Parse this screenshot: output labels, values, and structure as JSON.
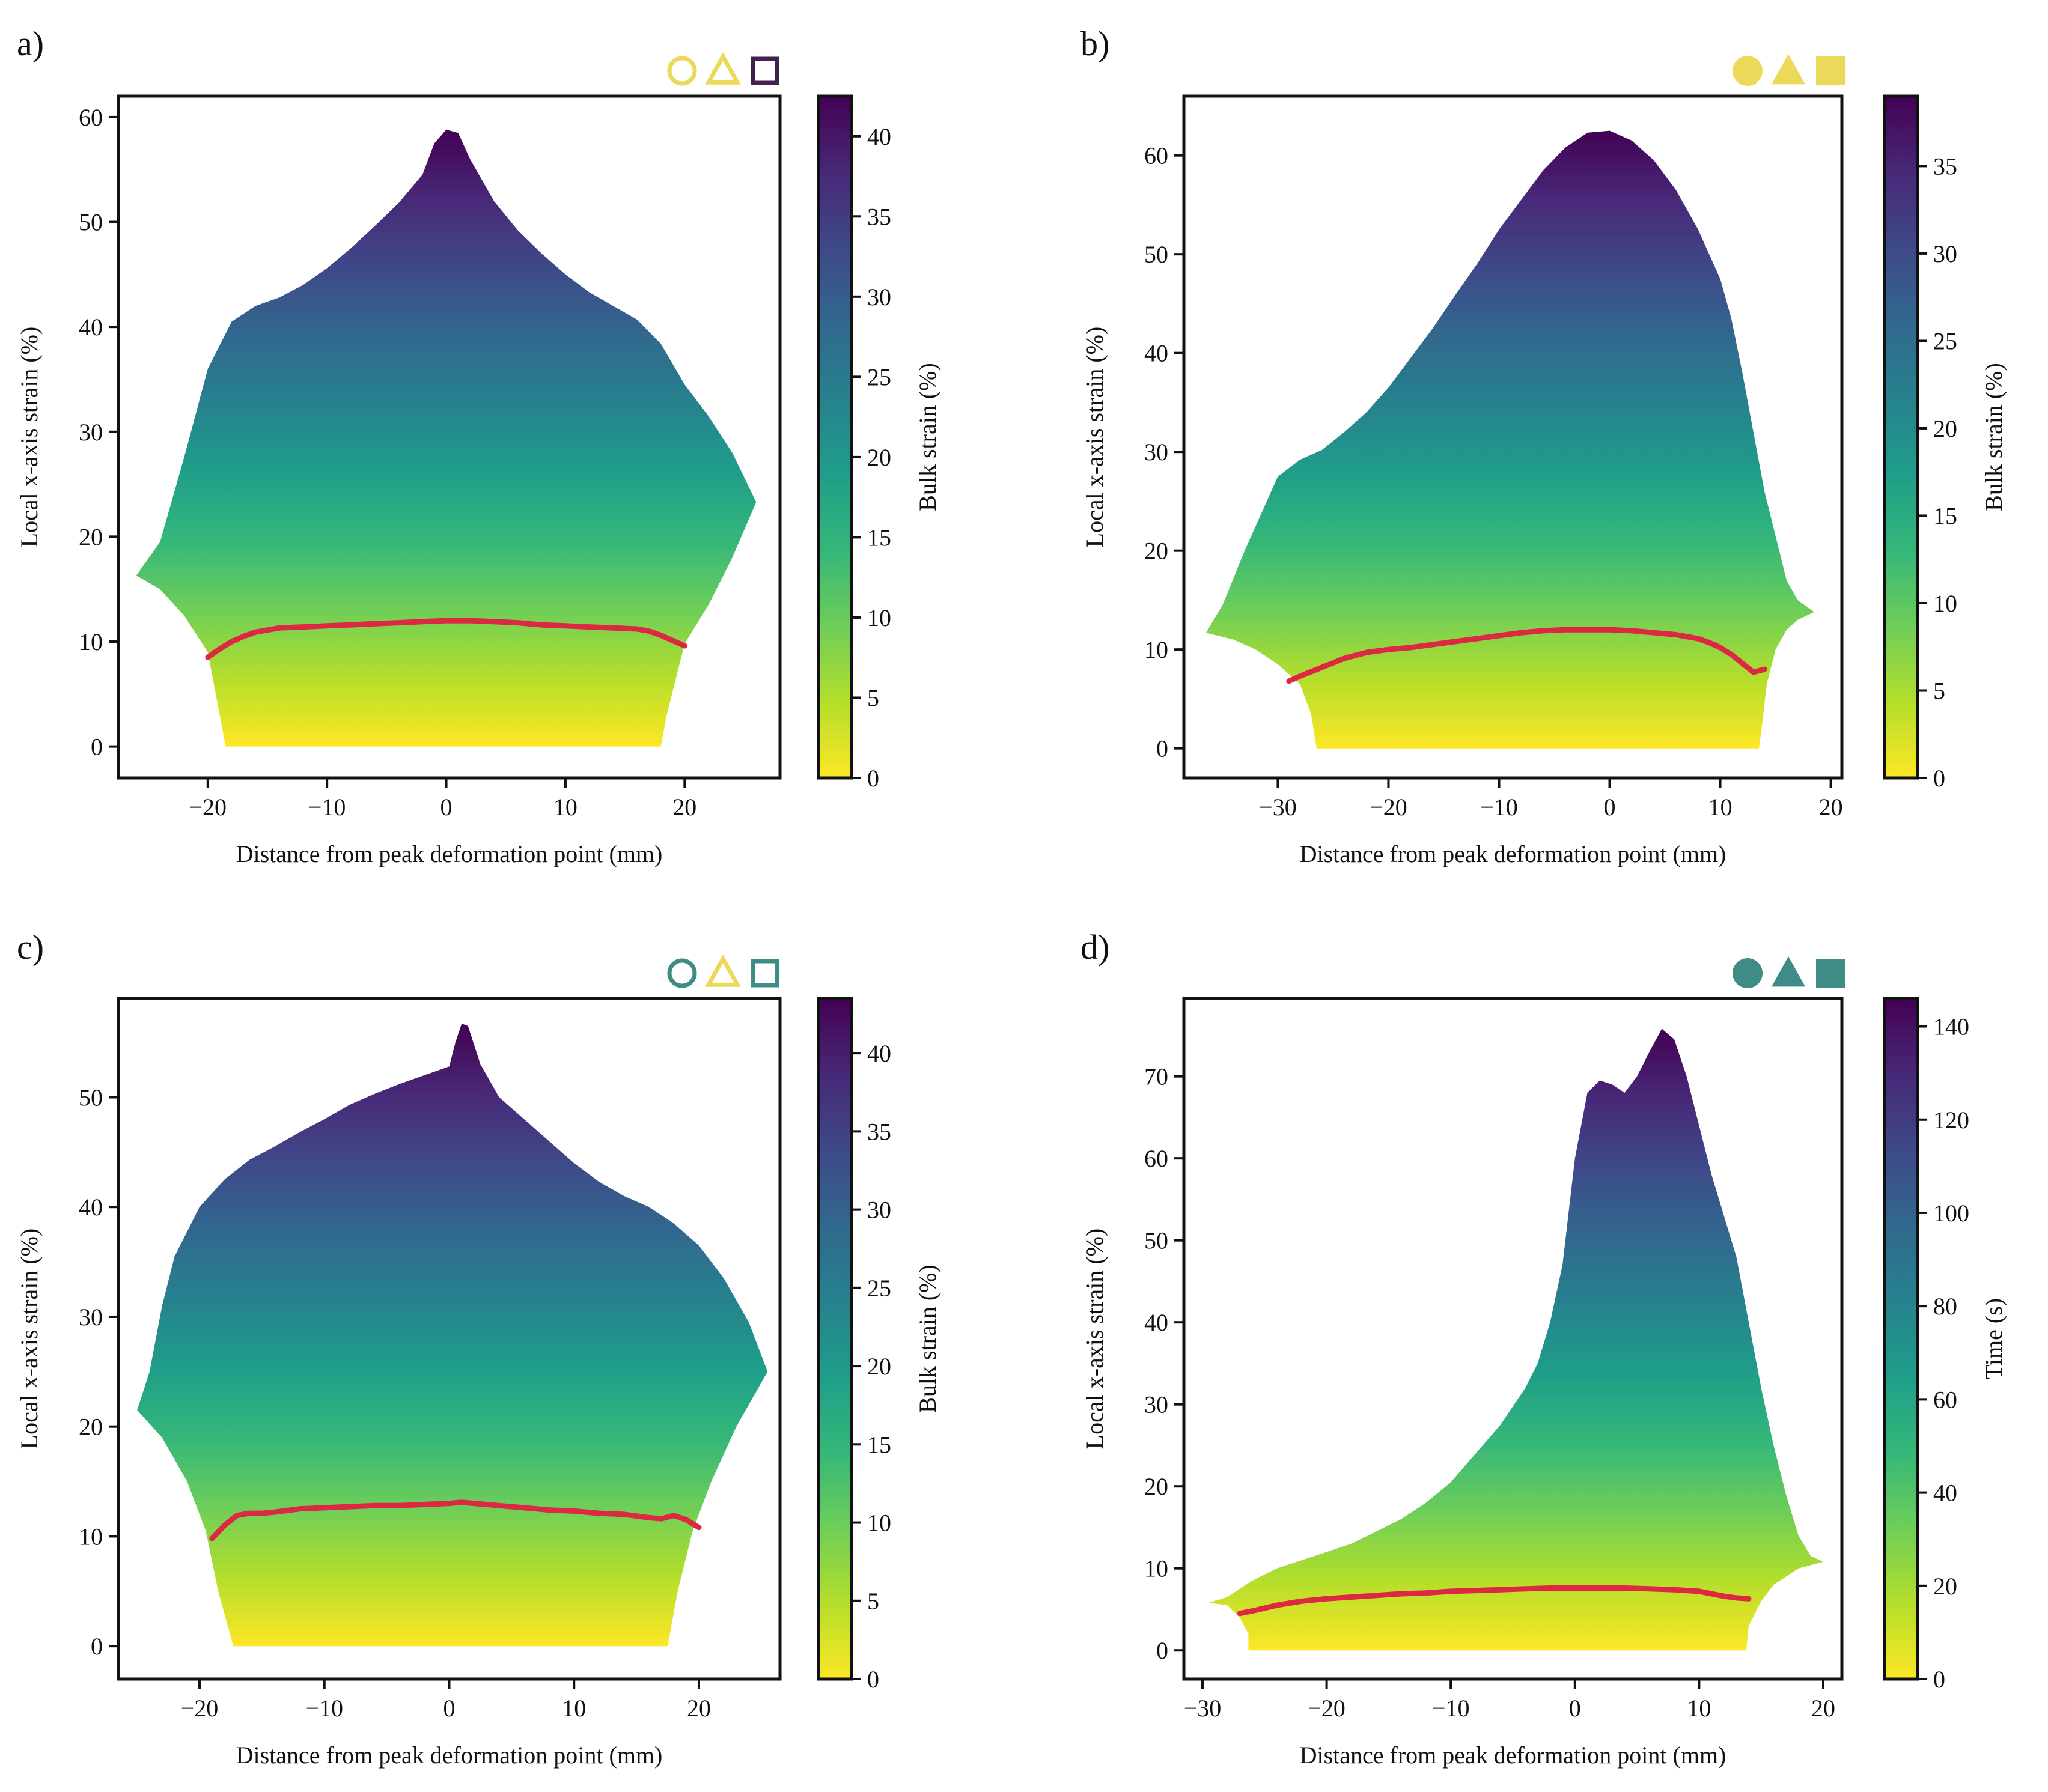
{
  "colors": {
    "viridis": [
      "#fde725",
      "#b5de2b",
      "#6ece58",
      "#35b779",
      "#1f9e89",
      "#26828e",
      "#31688e",
      "#3e4989",
      "#482878",
      "#440154"
    ],
    "peak_line": "#dc2843",
    "axes": "#111111"
  },
  "chart_data": [
    {
      "type": "area",
      "panel": "a)",
      "xlabel": "Distance from peak deformation point (mm)",
      "ylabel": "Local x-axis strain (%)",
      "xlim": [
        -27.5,
        28
      ],
      "ylim": [
        -3,
        62
      ],
      "xticks": [
        -20,
        -10,
        0,
        10,
        20
      ],
      "yticks": [
        0,
        10,
        20,
        30,
        40,
        50,
        60
      ],
      "colorbar": {
        "label": "Bulk strain (%)",
        "range": [
          0,
          42.5
        ],
        "ticks": [
          0,
          5,
          10,
          15,
          20,
          25,
          30,
          35,
          40
        ]
      },
      "markers": [
        {
          "shape": "circle",
          "filled": false,
          "color": "#ecd95a"
        },
        {
          "shape": "triangle",
          "filled": false,
          "color": "#ecd95a"
        },
        {
          "shape": "square",
          "filled": false,
          "color": "#44204f"
        }
      ],
      "envelope_top": {
        "x": [
          -26,
          -24,
          -22,
          -20,
          -18,
          -16,
          -14,
          -12,
          -10,
          -8,
          -6,
          -4,
          -2,
          -1,
          0,
          1,
          2,
          4,
          6,
          8,
          10,
          12,
          14,
          16,
          18,
          20,
          22,
          24,
          26
        ],
        "y": [
          16.3,
          19.5,
          27.5,
          36,
          40.5,
          42,
          42.8,
          44,
          45.6,
          47.5,
          49.6,
          51.8,
          54.5,
          57.5,
          58.8,
          58.5,
          56,
          52,
          49.2,
          47,
          45,
          43.3,
          42,
          40.7,
          38.4,
          34.5,
          31.5,
          28,
          23.3
        ]
      },
      "envelope_bottom": {
        "x": [
          -26,
          -24,
          -22,
          -20,
          -19,
          -18.5,
          18,
          18.5,
          20,
          22,
          24,
          26
        ],
        "y": [
          16.3,
          15,
          12.5,
          9,
          3,
          0,
          0,
          3,
          9.8,
          13.5,
          18,
          23.3
        ]
      },
      "red_line": {
        "x": [
          -20,
          -19,
          -18,
          -17,
          -16,
          -14,
          -12,
          -10,
          -8,
          -6,
          -4,
          -2,
          0,
          2,
          4,
          6,
          8,
          10,
          12,
          14,
          16,
          17,
          18,
          19,
          20
        ],
        "y": [
          8.5,
          9.3,
          10,
          10.5,
          10.9,
          11.3,
          11.4,
          11.5,
          11.6,
          11.7,
          11.8,
          11.9,
          12.0,
          12.0,
          11.9,
          11.8,
          11.6,
          11.5,
          11.4,
          11.3,
          11.2,
          11.0,
          10.6,
          10.1,
          9.6
        ]
      }
    },
    {
      "type": "area",
      "panel": "b)",
      "xlabel": "Distance from peak deformation point (mm)",
      "ylabel": "Local x-axis strain (%)",
      "xlim": [
        -38.5,
        21
      ],
      "ylim": [
        -3,
        66
      ],
      "xticks": [
        -30,
        -20,
        -10,
        0,
        10,
        20
      ],
      "yticks": [
        0,
        10,
        20,
        30,
        40,
        50,
        60
      ],
      "colorbar": {
        "label": "Bulk strain (%)",
        "range": [
          0,
          39
        ],
        "ticks": [
          0,
          5,
          10,
          15,
          20,
          25,
          30,
          35
        ]
      },
      "markers": [
        {
          "shape": "circle",
          "filled": true,
          "color": "#ecd95a"
        },
        {
          "shape": "triangle",
          "filled": true,
          "color": "#ecd95a"
        },
        {
          "shape": "square",
          "filled": true,
          "color": "#ecd95a"
        }
      ],
      "envelope_top": {
        "x": [
          -36.5,
          -35,
          -33,
          -31,
          -30,
          -28,
          -26,
          -24,
          -22,
          -20,
          -18,
          -16,
          -14,
          -12,
          -10,
          -8,
          -6,
          -4,
          -2,
          0,
          2,
          4,
          6,
          8,
          10,
          11,
          12,
          14,
          16,
          17,
          18.5
        ],
        "y": [
          11.7,
          14.5,
          20,
          25,
          27.5,
          29.2,
          30.2,
          32,
          34,
          36.5,
          39.5,
          42.5,
          45.8,
          49,
          52.5,
          55.5,
          58.5,
          60.8,
          62.3,
          62.5,
          61.5,
          59.5,
          56.5,
          52.5,
          47.5,
          43.5,
          38,
          26,
          17,
          15,
          13.8
        ]
      },
      "envelope_bottom": {
        "x": [
          -36.5,
          -34,
          -32,
          -30,
          -28,
          -27,
          -26.5,
          13.5,
          13.8,
          14.2,
          15,
          16,
          17,
          18.5
        ],
        "y": [
          11.7,
          11,
          10,
          8.5,
          6.5,
          3.5,
          0,
          0,
          2.5,
          6.5,
          10,
          12,
          13,
          13.8
        ]
      },
      "red_line": {
        "x": [
          -29,
          -28,
          -26,
          -24,
          -22,
          -20,
          -18,
          -16,
          -14,
          -12,
          -10,
          -8,
          -6,
          -4,
          -2,
          0,
          2,
          4,
          6,
          8,
          9,
          10,
          11,
          12,
          13,
          14
        ],
        "y": [
          6.8,
          7.3,
          8.2,
          9.1,
          9.7,
          10.0,
          10.2,
          10.5,
          10.8,
          11.1,
          11.4,
          11.7,
          11.9,
          12.0,
          12.0,
          12.0,
          11.9,
          11.7,
          11.5,
          11.1,
          10.7,
          10.2,
          9.5,
          8.6,
          7.7,
          8.0
        ]
      }
    },
    {
      "type": "area",
      "panel": "c)",
      "xlabel": "Distance from peak deformation point (mm)",
      "ylabel": "Local x-axis strain (%)",
      "xlim": [
        -26.5,
        26.5
      ],
      "ylim": [
        -3,
        59
      ],
      "xticks": [
        -20,
        -10,
        0,
        10,
        20
      ],
      "yticks": [
        0,
        10,
        20,
        30,
        40,
        50
      ],
      "colorbar": {
        "label": "Bulk strain (%)",
        "range": [
          0,
          43.5
        ],
        "ticks": [
          0,
          5,
          10,
          15,
          20,
          25,
          30,
          35,
          40
        ]
      },
      "markers": [
        {
          "shape": "circle",
          "filled": false,
          "color": "#3f8c87"
        },
        {
          "shape": "triangle",
          "filled": false,
          "color": "#ecd95a"
        },
        {
          "shape": "square",
          "filled": false,
          "color": "#3f8c87"
        }
      ],
      "envelope_top": {
        "x": [
          -25,
          -24,
          -23,
          -22,
          -20,
          -18,
          -16,
          -14,
          -12,
          -10,
          -8,
          -6,
          -4,
          -2,
          0,
          0.5,
          1,
          1.5,
          2.5,
          4,
          6,
          8,
          10,
          12,
          14,
          16,
          18,
          20,
          22,
          24,
          25.5
        ],
        "y": [
          21.5,
          25,
          31,
          35.5,
          40,
          42.5,
          44.3,
          45.5,
          46.8,
          48,
          49.3,
          50.3,
          51.2,
          52,
          52.8,
          55,
          56.7,
          56.5,
          53,
          50,
          48,
          46,
          44,
          42.3,
          41,
          40,
          38.5,
          36.5,
          33.5,
          29.5,
          25
        ]
      },
      "envelope_bottom": {
        "x": [
          -25,
          -23,
          -21,
          -19.5,
          -18.5,
          -17.3,
          17.5,
          18.3,
          19.5,
          21,
          23,
          25.5
        ],
        "y": [
          21.5,
          19,
          15,
          10.5,
          5,
          0,
          0,
          5,
          10.5,
          15,
          20,
          25
        ]
      },
      "red_line": {
        "x": [
          -19,
          -18,
          -17,
          -16,
          -15,
          -14,
          -12,
          -10,
          -8,
          -6,
          -4,
          -2,
          0,
          1,
          2,
          4,
          6,
          8,
          10,
          12,
          14,
          16,
          17,
          18,
          19,
          20
        ],
        "y": [
          9.8,
          11.0,
          11.9,
          12.1,
          12.1,
          12.2,
          12.5,
          12.6,
          12.7,
          12.8,
          12.8,
          12.9,
          13.0,
          13.1,
          13.0,
          12.8,
          12.6,
          12.4,
          12.3,
          12.1,
          12.0,
          11.7,
          11.6,
          11.9,
          11.5,
          10.8
        ]
      }
    },
    {
      "type": "area",
      "panel": "d)",
      "xlabel": "Distance from peak deformation point (mm)",
      "ylabel": "Local x-axis strain (%)",
      "xlim": [
        -31.5,
        21.5
      ],
      "ylim": [
        -3.5,
        79.5
      ],
      "xticks": [
        -30,
        -20,
        -10,
        0,
        10,
        20
      ],
      "yticks": [
        0,
        10,
        20,
        30,
        40,
        50,
        60,
        70
      ],
      "colorbar": {
        "label": "Time (s)",
        "range": [
          0,
          146
        ],
        "ticks": [
          0,
          20,
          40,
          60,
          80,
          100,
          120,
          140
        ]
      },
      "markers": [
        {
          "shape": "circle",
          "filled": true,
          "color": "#3f8c87"
        },
        {
          "shape": "triangle",
          "filled": true,
          "color": "#3f8c87"
        },
        {
          "shape": "square",
          "filled": true,
          "color": "#3f8c87"
        }
      ],
      "envelope_top": {
        "x": [
          -29.5,
          -28,
          -26,
          -24,
          -22,
          -20,
          -18,
          -16,
          -14,
          -12,
          -10,
          -8,
          -6,
          -4,
          -3,
          -2,
          -1,
          0,
          1,
          2,
          3,
          4,
          5,
          6,
          7,
          8,
          9,
          10,
          11,
          12,
          13,
          14,
          15,
          16,
          17,
          18,
          19,
          20
        ],
        "y": [
          5.8,
          6.5,
          8.5,
          10,
          11,
          12,
          13,
          14.5,
          16,
          18,
          20.5,
          24,
          27.5,
          32,
          35,
          40,
          47,
          60,
          68,
          69.5,
          69,
          68,
          70,
          73,
          75.8,
          74.5,
          70,
          64,
          58,
          53,
          48,
          40,
          32,
          25,
          19,
          14,
          11.5,
          10.8
        ]
      },
      "envelope_bottom": {
        "x": [
          -29.5,
          -28,
          -27,
          -26.3,
          -26.3,
          13.8,
          14,
          15,
          16,
          18,
          20
        ],
        "y": [
          5.8,
          5.5,
          4,
          2,
          0,
          0,
          3,
          6,
          8,
          10,
          10.8
        ]
      },
      "red_line": {
        "x": [
          -27,
          -26,
          -24,
          -22,
          -20,
          -18,
          -16,
          -14,
          -12,
          -10,
          -8,
          -6,
          -4,
          -2,
          0,
          2,
          4,
          6,
          8,
          9,
          10,
          11,
          12,
          13,
          14
        ],
        "y": [
          4.5,
          4.8,
          5.5,
          6.0,
          6.3,
          6.5,
          6.7,
          6.9,
          7.0,
          7.2,
          7.3,
          7.4,
          7.5,
          7.6,
          7.6,
          7.6,
          7.6,
          7.5,
          7.4,
          7.3,
          7.2,
          6.9,
          6.6,
          6.4,
          6.3
        ]
      }
    }
  ]
}
